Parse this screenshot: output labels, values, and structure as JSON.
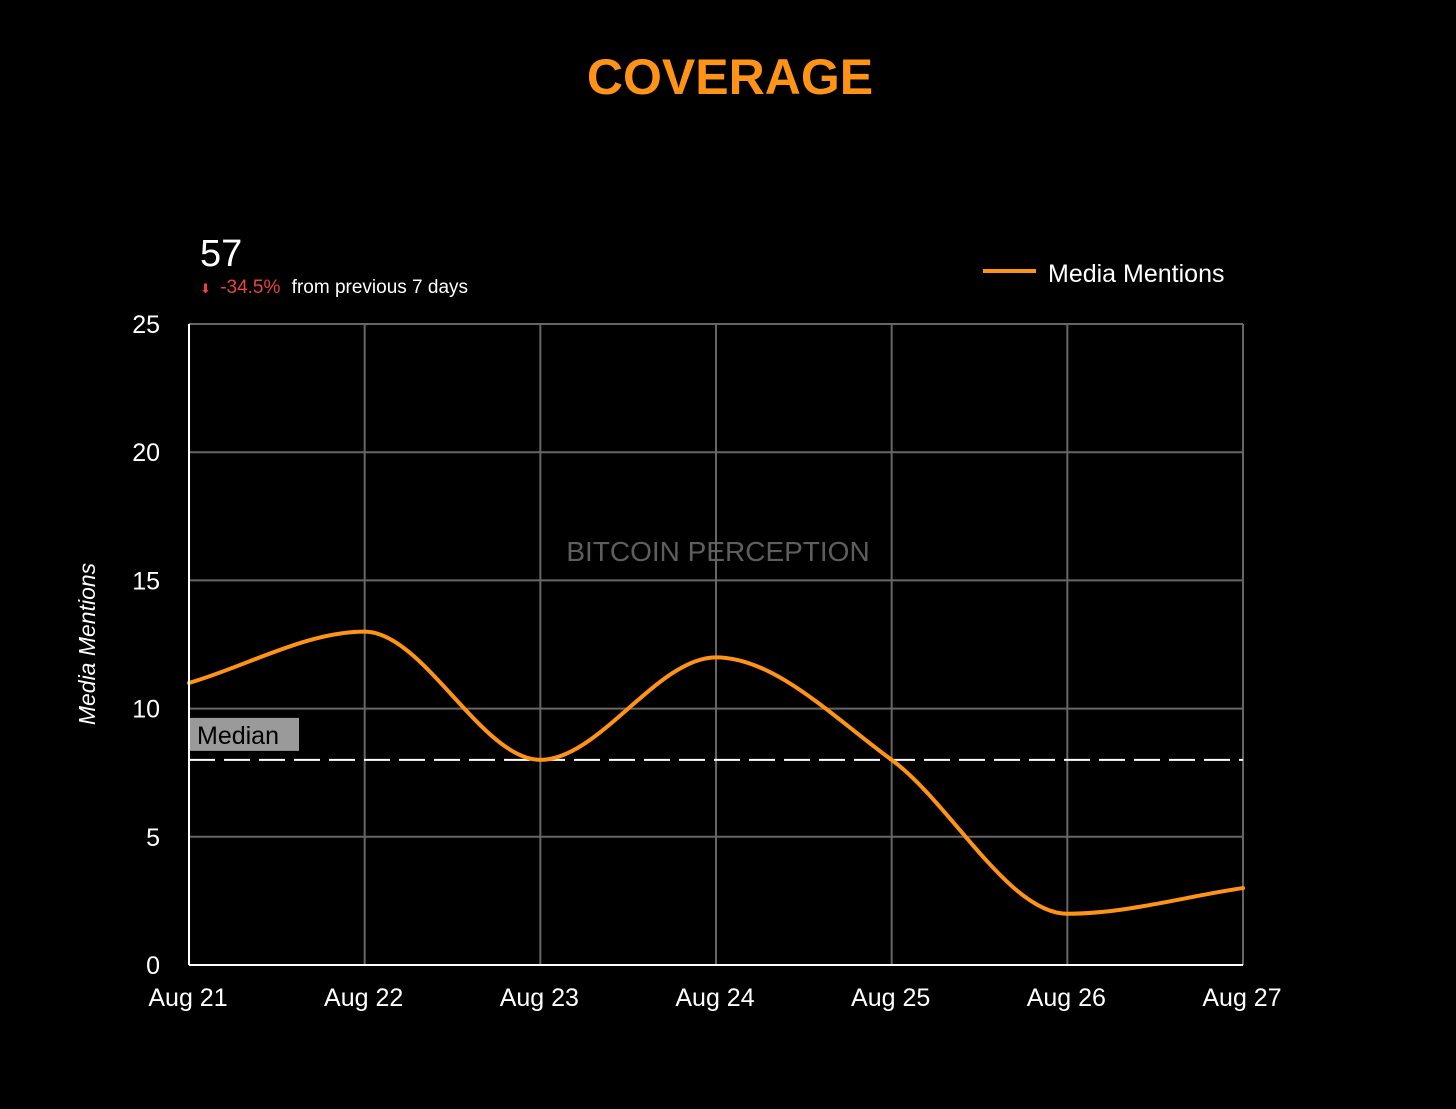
{
  "page": {
    "title": "COVERAGE"
  },
  "summary": {
    "total": "57",
    "arrow": "⬇",
    "change": "-34.5%",
    "change_suffix": "from previous 7 days"
  },
  "colors": {
    "background": "#000000",
    "accent": "#ff9317",
    "line": "#ff9317",
    "negative": "#e8463a",
    "grid": "#666666",
    "axis": "#ffffff",
    "median_line": "#ffffff",
    "median_label_bg": "#9a9a9a",
    "watermark": "#5e5e5e"
  },
  "chart_data": {
    "type": "line",
    "title": "COVERAGE",
    "watermark": "BITCOIN PERCEPTION",
    "xlabel": "",
    "ylabel": "Media Mentions",
    "categories": [
      "Aug 21",
      "Aug 22",
      "Aug 23",
      "Aug 24",
      "Aug 25",
      "Aug 26",
      "Aug 27"
    ],
    "series": [
      {
        "name": "Media Mentions",
        "values": [
          11,
          13,
          8,
          12,
          8,
          2,
          3
        ]
      }
    ],
    "ylim": [
      0,
      25
    ],
    "yticks": [
      0,
      5,
      10,
      15,
      20,
      25
    ],
    "curve": "smooth",
    "grid": true,
    "legend_position": "top-right",
    "reference_lines": [
      {
        "label": "Median",
        "value": 8,
        "style": "dashed"
      }
    ]
  }
}
